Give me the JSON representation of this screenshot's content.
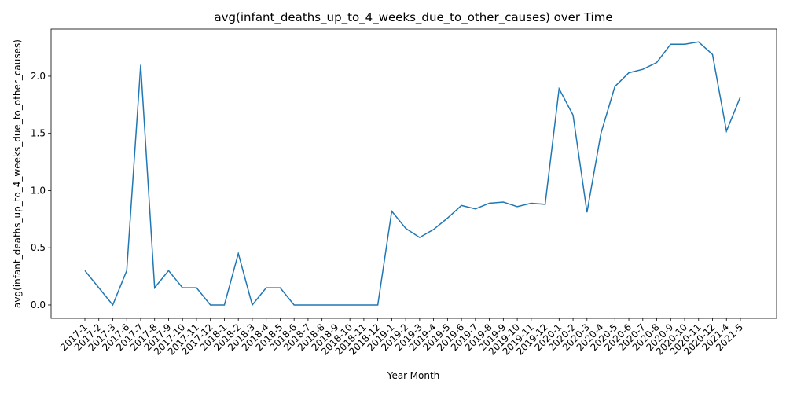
{
  "chart_data": {
    "type": "line",
    "title": "avg(infant_deaths_up_to_4_weeks_due_to_other_causes) over Time",
    "xlabel": "Year-Month",
    "ylabel": "avg(infant_deaths_up_to_4_weeks_due_to_other_causes)",
    "categories": [
      "2017-1",
      "2017-2",
      "2017-3",
      "2017-6",
      "2017-7",
      "2017-8",
      "2017-9",
      "2017-10",
      "2017-11",
      "2017-12",
      "2018-1",
      "2018-2",
      "2018-3",
      "2018-4",
      "2018-5",
      "2018-6",
      "2018-7",
      "2018-8",
      "2018-9",
      "2018-10",
      "2018-11",
      "2018-12",
      "2019-1",
      "2019-2",
      "2019-3",
      "2019-4",
      "2019-5",
      "2019-6",
      "2019-7",
      "2019-8",
      "2019-9",
      "2019-10",
      "2019-11",
      "2019-12",
      "2020-1",
      "2020-2",
      "2020-3",
      "2020-4",
      "2020-5",
      "2020-6",
      "2020-7",
      "2020-8",
      "2020-9",
      "2020-10",
      "2020-11",
      "2020-12",
      "2021-4",
      "2021-5"
    ],
    "series": [
      {
        "name": "avg(infant_deaths_up_to_4_weeks_due_to_other_causes)",
        "color": "#1f77b4",
        "values": [
          0.3,
          0.15,
          0,
          0.3,
          2.1,
          0.15,
          0.3,
          0.15,
          0.15,
          0,
          0,
          0.45,
          0,
          0.15,
          0.15,
          0,
          0,
          0,
          0,
          0,
          0,
          0,
          0.82,
          0.67,
          0.59,
          0.66,
          0.76,
          0.87,
          0.84,
          0.89,
          0.9,
          0.86,
          0.89,
          0.88,
          1.89,
          1.66,
          0.81,
          1.5,
          1.91,
          2.03,
          2.06,
          2.12,
          2.28,
          2.28,
          2.3,
          2.19,
          1.52,
          1.82
        ]
      }
    ],
    "ylim": [
      -0.117,
      2.412
    ],
    "yticks": [
      {
        "value": 0,
        "label": "0.0"
      },
      {
        "value": 0.5,
        "label": "0.5"
      },
      {
        "value": 1,
        "label": "1.0"
      },
      {
        "value": 1.5,
        "label": "1.5"
      },
      {
        "value": 2,
        "label": "2.0"
      }
    ],
    "grid": false
  }
}
